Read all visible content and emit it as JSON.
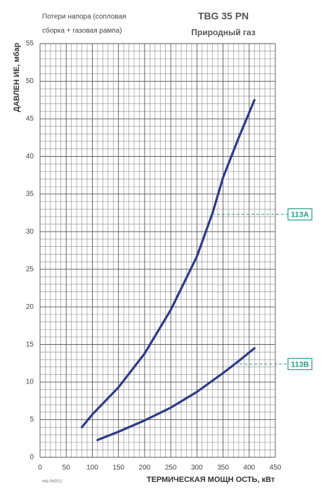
{
  "chart_data": {
    "type": "line",
    "note": [
      "Потери напора (сопловая",
      "сборка + газовая рампа)"
    ],
    "title": "TBG 35 PN",
    "subtitle": "Природный газ",
    "y_label": "ДАВЛЕН ИЕ, мбар",
    "x_label": "ТЕРМИЧЕСКАЯ МОЩН ОСТЬ, кВт",
    "edition": "ediz.09/2012",
    "xlim": [
      0,
      450
    ],
    "xticks": [
      0,
      50,
      100,
      150,
      200,
      250,
      300,
      350,
      400,
      450
    ],
    "ylim": [
      0,
      55
    ],
    "yticks": [
      0,
      5,
      10,
      15,
      20,
      25,
      30,
      35,
      40,
      45,
      50,
      55
    ],
    "grid": true,
    "series": [
      {
        "name": "113A",
        "color": "#2e3a87",
        "callout_y": 32.3,
        "callout_color": "#2a9d8f",
        "x": [
          80,
          100,
          150,
          200,
          250,
          300,
          330,
          350,
          380,
          410
        ],
        "values": [
          4.0,
          5.7,
          9.3,
          13.8,
          19.6,
          26.7,
          32.5,
          37.2,
          42.5,
          47.5
        ]
      },
      {
        "name": "113B",
        "color": "#2e3a87",
        "callout_y": 12.4,
        "callout_color": "#2a9d8f",
        "x": [
          110,
          150,
          200,
          250,
          300,
          350,
          380,
          410
        ],
        "values": [
          2.3,
          3.4,
          4.9,
          6.6,
          8.7,
          11.2,
          12.8,
          14.5
        ]
      }
    ]
  }
}
